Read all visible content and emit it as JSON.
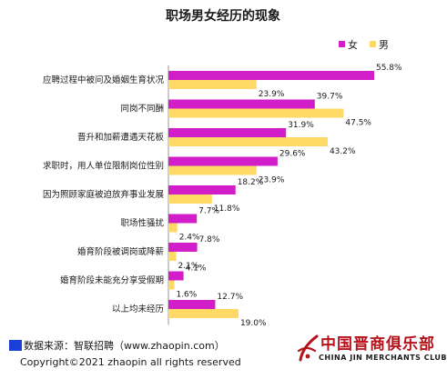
{
  "chart_data": {
    "type": "bar",
    "orientation": "horizontal",
    "title": "职场男女经历的现象",
    "categories": [
      "应聘过程中被问及婚姻生育状况",
      "同岗不同酬",
      "晋升和加薪遭遇天花板",
      "求职时，用人单位限制岗位性别",
      "因为照顾家庭被迫放弃事业发展",
      "职场性骚扰",
      "婚育阶段被调岗或降薪",
      "婚育阶段未能充分享受假期",
      "以上均未经历"
    ],
    "series": [
      {
        "name": "女",
        "color": "#d21ec8",
        "values": [
          55.8,
          39.7,
          31.9,
          29.6,
          18.2,
          7.7,
          7.8,
          4.1,
          12.7
        ],
        "labels": [
          "55.8%",
          "39.7%",
          "31.9%",
          "29.6%",
          "18.2%",
          "7.7%",
          "7.8%",
          "4.1%",
          "12.7%"
        ]
      },
      {
        "name": "男",
        "color": "#ffd966",
        "values": [
          23.9,
          47.5,
          43.2,
          23.9,
          11.8,
          2.4,
          2.1,
          1.6,
          19.0
        ],
        "labels": [
          "23.9%",
          "47.5%",
          "43.2%",
          "23.9%",
          "11.8%",
          "2.4%",
          "2.1%",
          "1.6%",
          "19.0%"
        ]
      }
    ],
    "xlim": [
      0,
      60
    ],
    "unit": "%",
    "grid": false,
    "legend_position": "top-right"
  },
  "footer": {
    "source": "数据来源：智联招聘（www.zhaopin.com）",
    "copyright": "Copyright©2021 zhaopin all rights reserved"
  },
  "logo": {
    "name_cn": "中国晋商俱乐部",
    "name_en": "CHINA JIN MERCHANTS CLUB",
    "color": "#b5121b"
  }
}
